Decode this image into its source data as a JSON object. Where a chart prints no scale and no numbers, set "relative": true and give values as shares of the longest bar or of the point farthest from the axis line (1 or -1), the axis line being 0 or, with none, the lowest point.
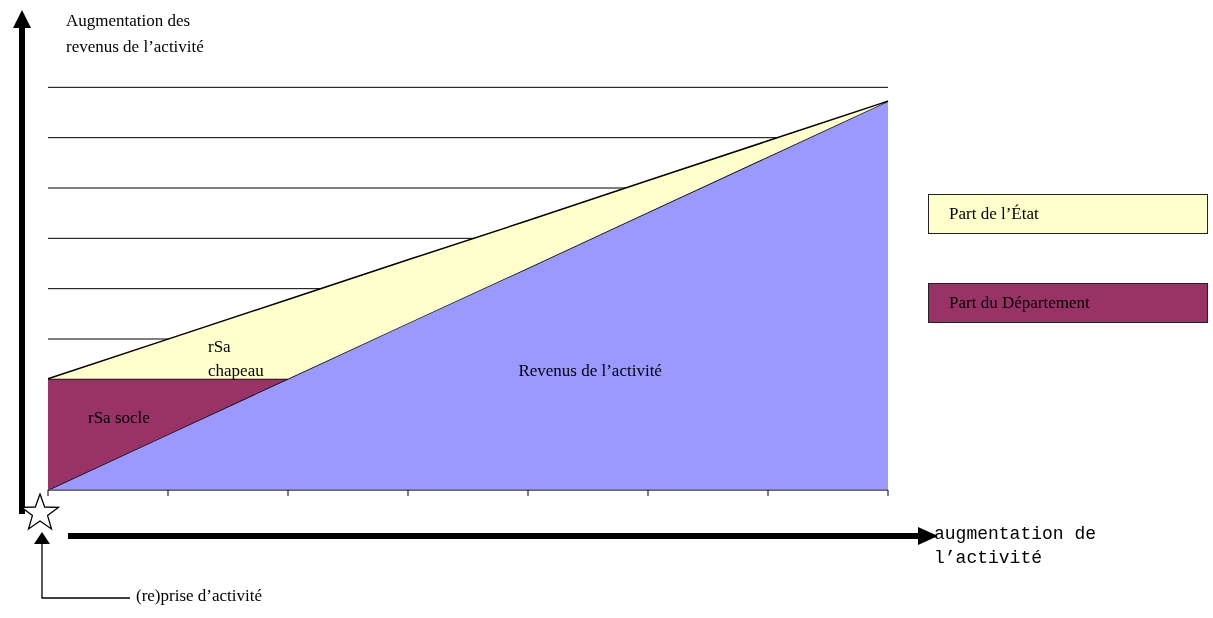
{
  "chart_data": {
    "type": "area",
    "relative": true,
    "stacked": true,
    "xlabel": "augmentation de l’activité",
    "ylabel": "Augmentation des revenus de l’activité",
    "categories": [
      null,
      null,
      null,
      null,
      null,
      null,
      null,
      null
    ],
    "series": [
      {
        "color": "#9999ff",
        "values": [
          0,
          0.143,
          0.286,
          0.429,
          0.571,
          0.714,
          0.857,
          1
        ]
      },
      {
        "name": "Part du Département",
        "color": "#993366",
        "values": [
          0.286,
          0.143,
          0,
          null,
          null,
          null,
          null,
          null
        ]
      },
      {
        "name": "Part de l’État",
        "color": "#ffffcc",
        "values": [
          0,
          0.102,
          0.204,
          0.163,
          0.122,
          0.082,
          0.041,
          0
        ]
      }
    ],
    "annotations": [
      "Revenus de l’activité",
      "rSa socle",
      "rSa chapeau",
      "(re)prise d’activité"
    ],
    "grid": "y",
    "legend": "right"
  }
}
